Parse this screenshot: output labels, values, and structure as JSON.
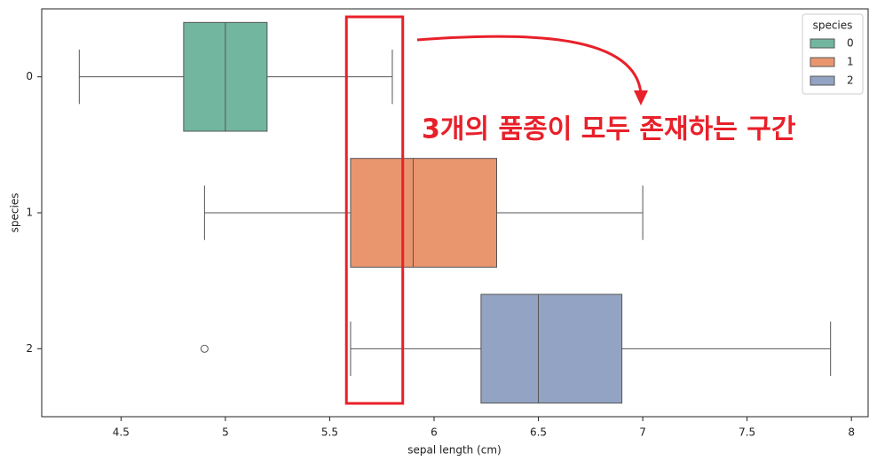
{
  "chart_data": {
    "type": "boxplot",
    "orientation": "horizontal",
    "x_label": "sepal length (cm)",
    "y_label": "species",
    "categories": [
      "0",
      "1",
      "2"
    ],
    "legend_title": "species",
    "legend_position": "upper right",
    "series": [
      {
        "name": "0",
        "color": "#72b6a0",
        "min": 4.3,
        "q1": 4.8,
        "median": 5.0,
        "q3": 5.2,
        "max": 5.8,
        "outliers": []
      },
      {
        "name": "1",
        "color": "#e9966f",
        "min": 4.9,
        "q1": 5.6,
        "median": 5.9,
        "q3": 6.3,
        "max": 7.0,
        "outliers": []
      },
      {
        "name": "2",
        "color": "#93a3c4",
        "min": 5.6,
        "q1": 6.225,
        "median": 6.5,
        "q3": 6.9,
        "max": 7.9,
        "outliers": [
          4.9
        ]
      }
    ],
    "xlim": [
      4.12,
      8.08
    ],
    "xticks": [
      4.5,
      5.0,
      5.5,
      6.0,
      6.5,
      7.0,
      7.5,
      8.0
    ],
    "highlight_range": [
      5.58,
      5.85
    ],
    "highlight_color": "#e8202a",
    "annotation": "3개의 품종이 모두 존재하는 구간"
  }
}
